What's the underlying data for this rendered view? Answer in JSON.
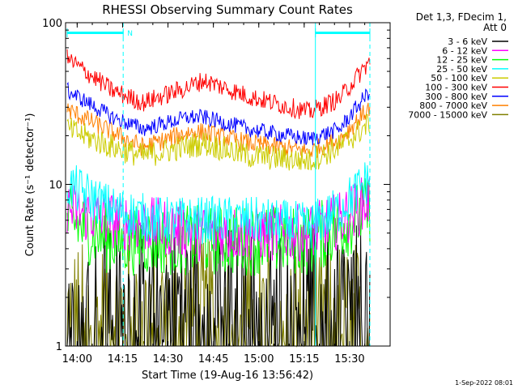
{
  "chart_data": {
    "type": "line",
    "title": "RHESSI Observing Summary Count Rates",
    "xlabel": "Start Time (19-Aug-16 13:56:42)",
    "ylabel": "Count Rate (s⁻¹ detector⁻¹)",
    "y_scale": "log",
    "ylim": [
      1,
      100
    ],
    "xlim_minutes": [
      0,
      100
    ],
    "x_tick_labels": [
      "14:00",
      "14:15",
      "14:30",
      "14:45",
      "15:00",
      "15:15",
      "15:30"
    ],
    "y_tick_labels": [
      "1",
      "10",
      "100"
    ],
    "legend_header": [
      "Det 1,3, FDecim 1,",
      "Att 0"
    ],
    "legend_position": "right",
    "series": [
      {
        "name": "3 - 6 keV",
        "color": "#000000",
        "level_points": [
          [
            0,
            2.0
          ],
          [
            100,
            2.0
          ]
        ],
        "scatter": 0.45,
        "floor": 1
      },
      {
        "name": "6 - 12 keV",
        "color": "#ff00ff",
        "level_points": [
          [
            0,
            7
          ],
          [
            15,
            6
          ],
          [
            30,
            5.5
          ],
          [
            45,
            5
          ],
          [
            60,
            5
          ],
          [
            80,
            5
          ],
          [
            90,
            6
          ],
          [
            100,
            8
          ]
        ],
        "scatter": 0.18,
        "floor": 1
      },
      {
        "name": "12 - 25 keV",
        "color": "#00ff00",
        "level_points": [
          [
            0,
            6
          ],
          [
            15,
            4.5
          ],
          [
            30,
            4.5
          ],
          [
            45,
            4.5
          ],
          [
            60,
            4.5
          ],
          [
            80,
            4.5
          ],
          [
            90,
            5.5
          ],
          [
            100,
            7
          ]
        ],
        "scatter": 0.22,
        "floor": 1
      },
      {
        "name": "25 - 50 keV",
        "color": "#00ffff",
        "level_points": [
          [
            0,
            10
          ],
          [
            15,
            7
          ],
          [
            30,
            6
          ],
          [
            45,
            6
          ],
          [
            60,
            6
          ],
          [
            80,
            5.5
          ],
          [
            90,
            7
          ],
          [
            100,
            11
          ]
        ],
        "scatter": 0.15,
        "floor": 1
      },
      {
        "name": "50 - 100 keV",
        "color": "#cccc00",
        "level_points": [
          [
            0,
            22
          ],
          [
            15,
            17
          ],
          [
            25,
            15
          ],
          [
            45,
            18
          ],
          [
            60,
            15
          ],
          [
            80,
            14
          ],
          [
            90,
            17
          ],
          [
            100,
            24
          ]
        ],
        "scatter": 0.08,
        "floor": 1
      },
      {
        "name": "100 - 300 keV",
        "color": "#ff0000",
        "level_points": [
          [
            0,
            60
          ],
          [
            15,
            38
          ],
          [
            25,
            32
          ],
          [
            40,
            40
          ],
          [
            45,
            44
          ],
          [
            60,
            35
          ],
          [
            80,
            28
          ],
          [
            90,
            34
          ],
          [
            100,
            58
          ]
        ],
        "scatter": 0.06,
        "floor": 1
      },
      {
        "name": "300 - 800 keV",
        "color": "#0000ff",
        "level_points": [
          [
            0,
            38
          ],
          [
            15,
            26
          ],
          [
            25,
            22
          ],
          [
            40,
            26
          ],
          [
            45,
            26
          ],
          [
            60,
            22
          ],
          [
            80,
            19
          ],
          [
            90,
            22
          ],
          [
            100,
            38
          ]
        ],
        "scatter": 0.05,
        "floor": 1
      },
      {
        "name": "800 - 7000 keV",
        "color": "#ff8000",
        "level_points": [
          [
            0,
            29
          ],
          [
            15,
            21
          ],
          [
            25,
            17
          ],
          [
            40,
            21
          ],
          [
            45,
            21
          ],
          [
            60,
            18
          ],
          [
            80,
            16
          ],
          [
            90,
            19
          ],
          [
            100,
            30
          ]
        ],
        "scatter": 0.06,
        "floor": 1
      },
      {
        "name": "7000 - 15000 keV",
        "color": "#808000",
        "level_points": [
          [
            0,
            1.6
          ],
          [
            100,
            1.6
          ]
        ],
        "scatter": 0.45,
        "floor": 1
      }
    ],
    "annotations": {
      "night_marker": "N",
      "night_bars_minutes": [
        [
          0,
          18.5
        ],
        [
          82,
          100
        ]
      ],
      "dashed_lines_minutes": [
        18.5,
        100
      ],
      "solid_line_minutes": 82
    }
  },
  "timestamp": "1-Sep-2022 08:01"
}
